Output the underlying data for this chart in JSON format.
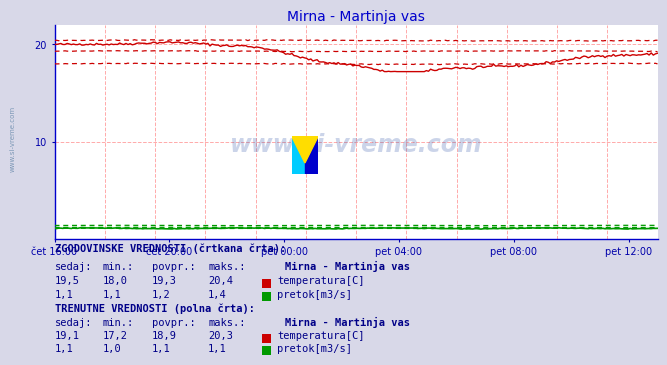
{
  "title": "Mirna - Martinja vas",
  "title_color": "#0000cc",
  "bg_color": "#d8d8e8",
  "plot_bg_color": "#ffffff",
  "grid_color": "#ffaaaa",
  "axis_label_color": "#0000aa",
  "ylim": [
    0,
    22
  ],
  "yticks": [
    10,
    20
  ],
  "n_points": 288,
  "xtick_labels": [
    "čet 16:00",
    "čet 20:00",
    "pet 00:00",
    "pet 04:00",
    "pet 08:00",
    "pet 12:00"
  ],
  "xtick_positions": [
    0.0,
    0.19,
    0.381,
    0.571,
    0.762,
    0.952
  ],
  "temp_hist_min": 18.0,
  "temp_hist_max": 20.4,
  "temp_hist_avg": 19.3,
  "temp_curr_min": 17.2,
  "temp_curr_max": 20.3,
  "temp_curr_avg": 18.9,
  "flow_hist_min": 1.1,
  "flow_hist_max": 1.4,
  "flow_hist_avg": 1.2,
  "flow_curr_min": 1.0,
  "flow_curr_max": 1.1,
  "flow_curr_avg": 1.1,
  "red_color": "#cc0000",
  "green_color": "#009900",
  "watermark_text": "www.si-vreme.com",
  "watermark_color": "#3355aa",
  "watermark_alpha": 0.25,
  "side_label": "www.si-vreme.com",
  "logo_cyan": "#00ccff",
  "logo_blue": "#0000cc",
  "logo_yellow": "#ffdd00",
  "text_color": "#000088",
  "bold_color": "#000055",
  "hist_label1": "ZGODOVINSKE VREDNOSTI (črtkana črta):",
  "curr_label1": "TRENUTNE VREDNOSTI (polna črta):",
  "col_sedaj": "sedaj:",
  "col_min": "min.:",
  "col_povpr": "povpr.:",
  "col_maks": "maks.:",
  "station": "Mirna - Martinja vas",
  "hist_temp_vals": [
    "19,5",
    "18,0",
    "19,3",
    "20,4"
  ],
  "hist_flow_vals": [
    "1,1",
    "1,1",
    "1,2",
    "1,4"
  ],
  "curr_temp_vals": [
    "19,1",
    "17,2",
    "18,9",
    "20,3"
  ],
  "curr_flow_vals": [
    "1,1",
    "1,0",
    "1,1",
    "1,1"
  ],
  "label_temp": "temperatura[C]",
  "label_flow": "pretok[m3/s]"
}
